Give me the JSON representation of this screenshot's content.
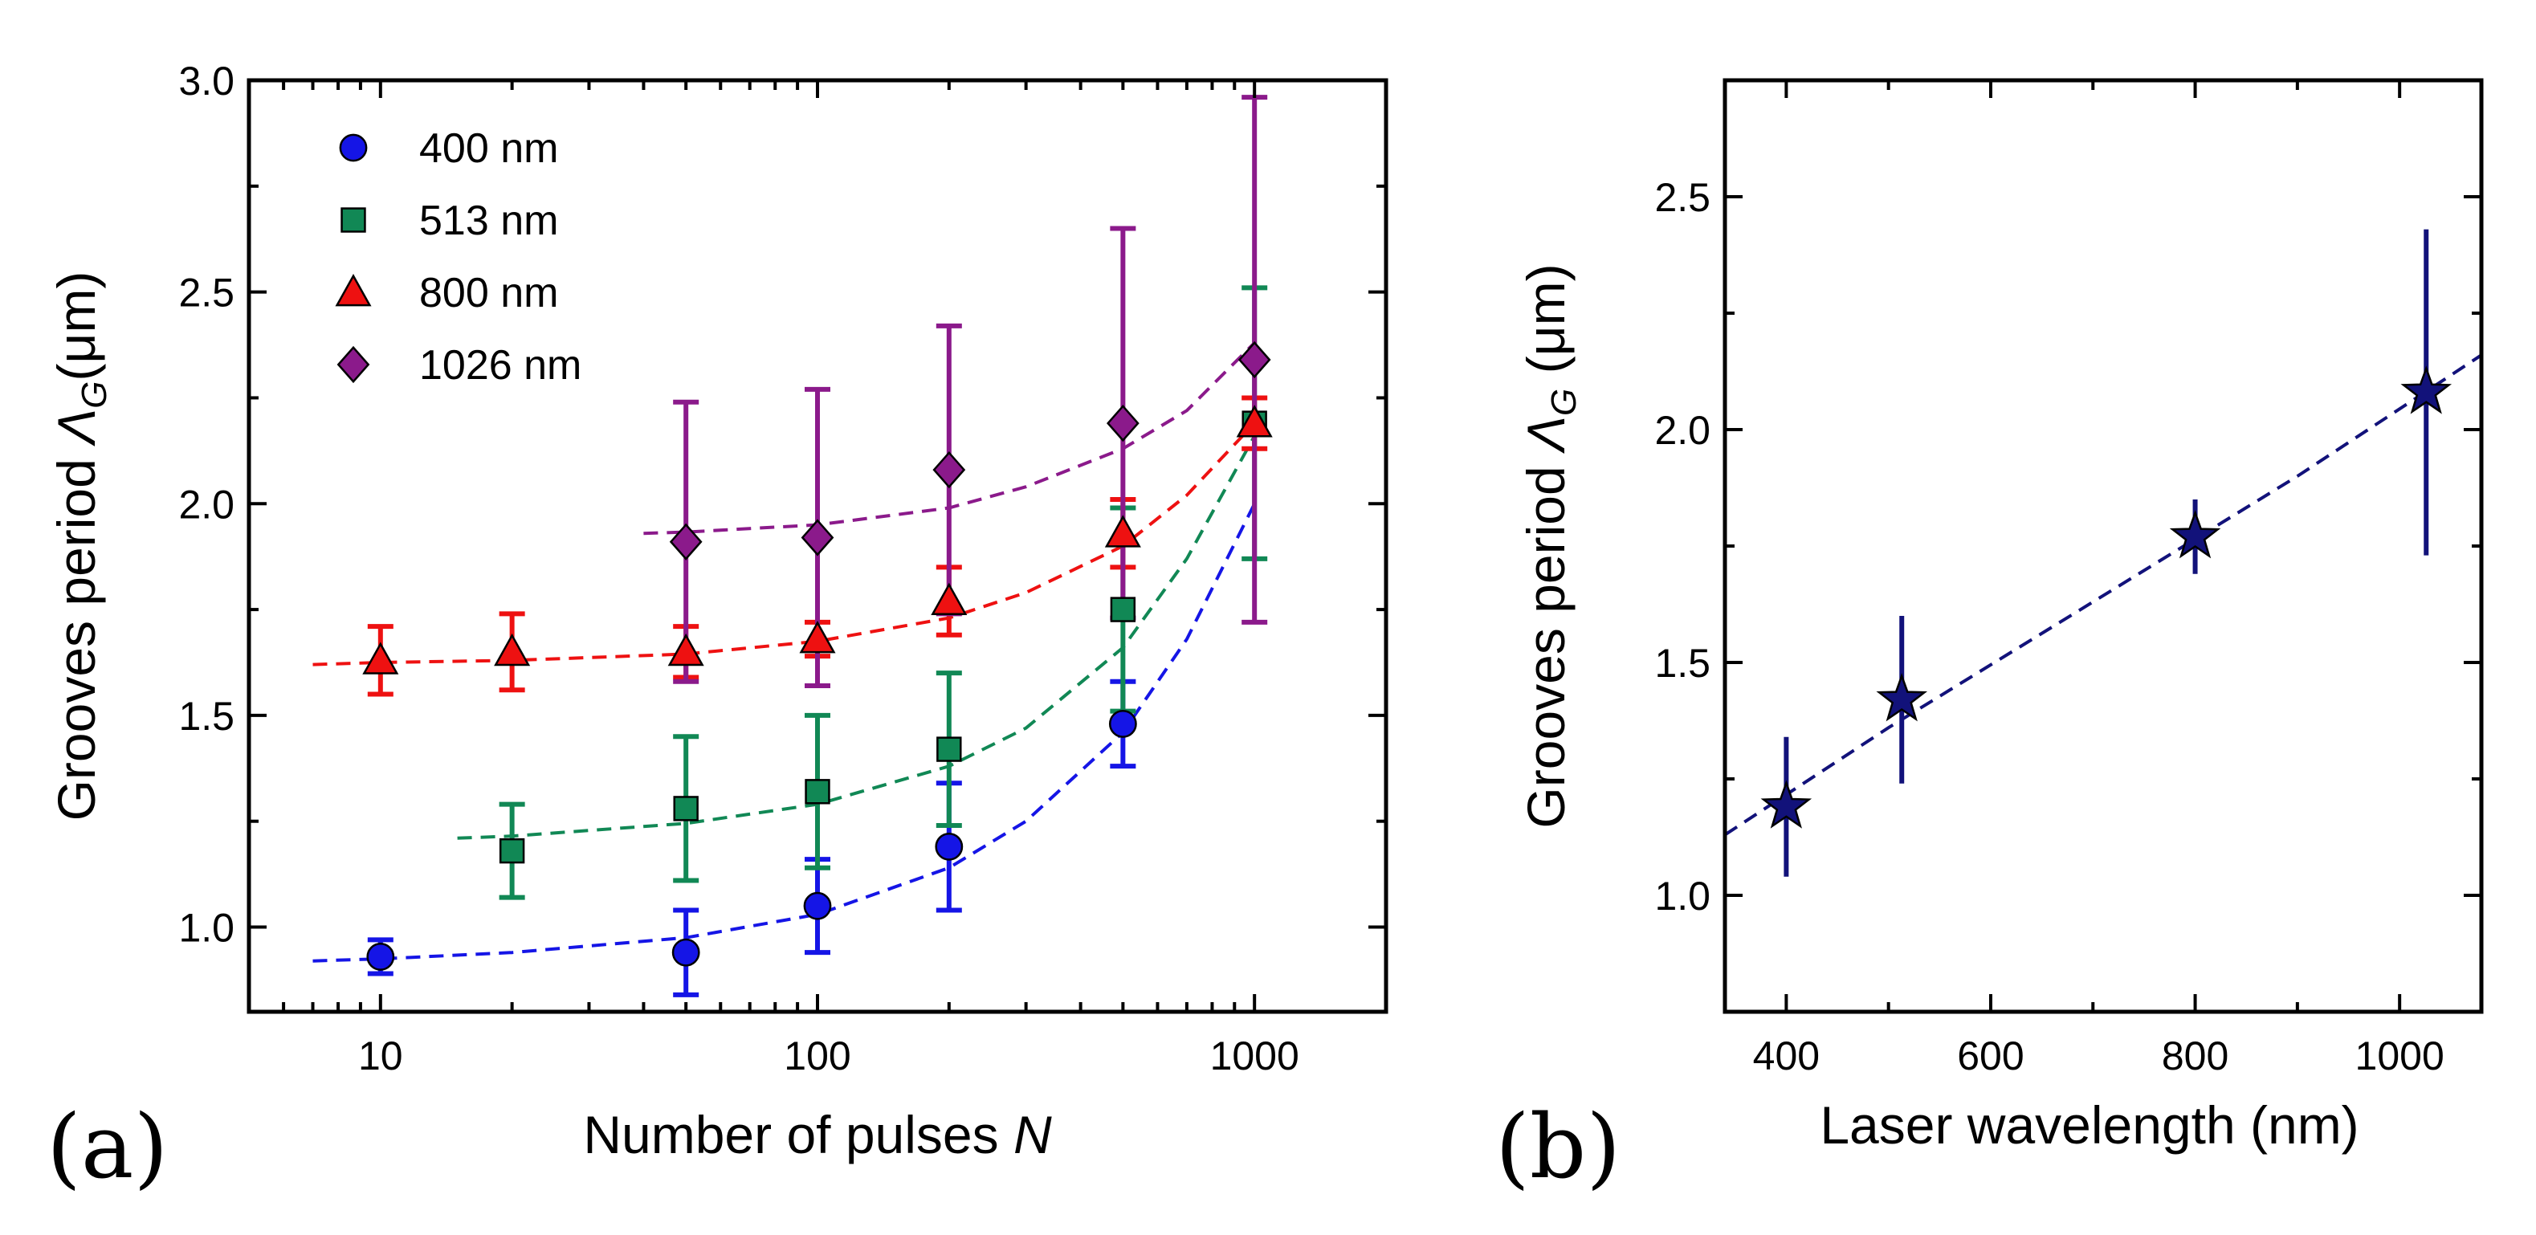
{
  "chart_data": [
    {
      "type": "scatter",
      "panel_label": "(a)",
      "xscale": "log",
      "xlabel_text": "Number of pulses ",
      "xlabel_var": "N",
      "ylabel_text": "Grooves period ",
      "ylabel_symbol": "Λ",
      "ylabel_sub": "G",
      "ylabel_unit": "(μm)",
      "xlim": [
        5,
        2000
      ],
      "ylim": [
        0.8,
        3.0
      ],
      "xticks": [
        10,
        100,
        1000
      ],
      "xtick_labels": [
        "10",
        "100",
        "1000"
      ],
      "yticks": [
        1.0,
        1.5,
        2.0,
        2.5,
        3.0
      ],
      "ytick_labels": [
        "1.0",
        "1.5",
        "2.0",
        "2.5",
        "3.0"
      ],
      "legend_position": "top-left",
      "series": [
        {
          "name": "400 nm",
          "color": "#1515e6",
          "marker": "circle",
          "x": [
            10,
            50,
            100,
            200,
            500
          ],
          "y": [
            0.93,
            0.94,
            1.05,
            1.19,
            1.48
          ],
          "err": [
            0.04,
            0.1,
            0.11,
            0.15,
            0.1
          ],
          "fit_x": [
            7,
            10,
            20,
            50,
            100,
            200,
            300,
            500,
            700,
            1000
          ],
          "fit_y": [
            0.92,
            0.925,
            0.94,
            0.975,
            1.03,
            1.14,
            1.25,
            1.46,
            1.68,
            2.0
          ]
        },
        {
          "name": "513 nm",
          "color": "#118855",
          "marker": "square",
          "x": [
            20,
            50,
            100,
            200,
            500,
            1000
          ],
          "y": [
            1.18,
            1.28,
            1.32,
            1.42,
            1.75,
            2.19
          ],
          "err": [
            0.11,
            0.17,
            0.18,
            0.18,
            0.24,
            0.32
          ],
          "fit_x": [
            15,
            20,
            50,
            100,
            200,
            300,
            500,
            700,
            1000
          ],
          "fit_y": [
            1.21,
            1.215,
            1.245,
            1.29,
            1.38,
            1.47,
            1.66,
            1.87,
            2.16
          ]
        },
        {
          "name": "800 nm",
          "color": "#ee1111",
          "marker": "triangle",
          "x": [
            10,
            20,
            50,
            100,
            200,
            500,
            1000
          ],
          "y": [
            1.63,
            1.65,
            1.65,
            1.68,
            1.77,
            1.93,
            2.19
          ],
          "err": [
            0.08,
            0.09,
            0.06,
            0.04,
            0.08,
            0.08,
            0.06
          ],
          "fit_x": [
            7,
            10,
            20,
            50,
            100,
            200,
            300,
            500,
            700,
            1000
          ],
          "fit_y": [
            1.62,
            1.625,
            1.63,
            1.645,
            1.675,
            1.73,
            1.79,
            1.9,
            2.02,
            2.19
          ]
        },
        {
          "name": "1026 nm",
          "color": "#8b1a8b",
          "marker": "diamond",
          "x": [
            50,
            100,
            200,
            500,
            1000
          ],
          "y": [
            1.91,
            1.92,
            2.08,
            2.19,
            2.34
          ],
          "err": [
            0.33,
            0.35,
            0.34,
            0.46,
            0.62
          ],
          "fit_x": [
            40,
            50,
            100,
            200,
            300,
            500,
            700,
            1000
          ],
          "fit_y": [
            1.93,
            1.933,
            1.95,
            1.99,
            2.04,
            2.13,
            2.22,
            2.38
          ]
        }
      ]
    },
    {
      "type": "scatter",
      "panel_label": "(b)",
      "xscale": "linear",
      "xlabel_text": "Laser wavelength (nm)",
      "ylabel_text": "Grooves period ",
      "ylabel_symbol": "Λ",
      "ylabel_sub": "G",
      "ylabel_unit": " (μm)",
      "xlim": [
        340,
        1080
      ],
      "ylim": [
        0.75,
        2.75
      ],
      "xticks": [
        400,
        600,
        800,
        1000
      ],
      "xtick_labels": [
        "400",
        "600",
        "800",
        "1000"
      ],
      "yticks": [
        1.0,
        1.5,
        2.0,
        2.5
      ],
      "ytick_labels": [
        "1.0",
        "1.5",
        "2.0",
        "2.5"
      ],
      "series": [
        {
          "name": "Grooves period",
          "color": "#12127a",
          "marker": "star",
          "x": [
            400,
            513,
            800,
            1026
          ],
          "y": [
            1.19,
            1.42,
            1.77,
            2.08
          ],
          "err": [
            0.15,
            0.18,
            0.08,
            0.35
          ],
          "fit_x": [
            340,
            500,
            700,
            900,
            1080
          ],
          "fit_y": [
            1.13,
            1.36,
            1.63,
            1.9,
            2.16
          ]
        }
      ]
    }
  ]
}
